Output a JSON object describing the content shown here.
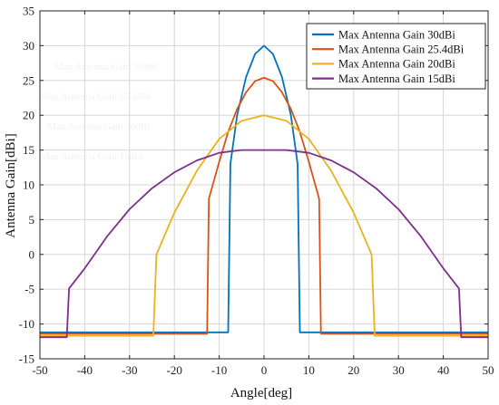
{
  "chart_data": {
    "type": "line",
    "xlabel": "Angle[deg]",
    "ylabel": "Antenna Gain[dBi]",
    "xlim": [
      -50,
      50
    ],
    "ylim": [
      -15,
      35
    ],
    "xticks": [
      -50,
      -40,
      -30,
      -20,
      -10,
      0,
      10,
      20,
      30,
      40,
      50
    ],
    "yticks": [
      -15,
      -10,
      -5,
      0,
      5,
      10,
      15,
      20,
      25,
      30,
      35
    ],
    "grid": true,
    "legend_position": "top-right",
    "series": [
      {
        "name": "Max Antenna Gain 30dBi",
        "color": "#0072BD",
        "points": [
          [
            -50,
            -11.2
          ],
          [
            -8,
            -11.2
          ],
          [
            -7.5,
            13
          ],
          [
            -6,
            20
          ],
          [
            -4,
            25.5
          ],
          [
            -2,
            28.8
          ],
          [
            0,
            30
          ],
          [
            2,
            28.8
          ],
          [
            4,
            25.5
          ],
          [
            6,
            20
          ],
          [
            7.5,
            13
          ],
          [
            8,
            -11.2
          ],
          [
            50,
            -11.2
          ]
        ]
      },
      {
        "name": "Max Antenna Gain 25.4dBi",
        "color": "#D95319",
        "points": [
          [
            -50,
            -11.4
          ],
          [
            -12.7,
            -11.4
          ],
          [
            -12.3,
            8
          ],
          [
            -10,
            13.3
          ],
          [
            -8,
            17.6
          ],
          [
            -6,
            20.9
          ],
          [
            -4,
            23.3
          ],
          [
            -2,
            24.9
          ],
          [
            0,
            25.4
          ],
          [
            2,
            24.9
          ],
          [
            4,
            23.3
          ],
          [
            6,
            20.9
          ],
          [
            8,
            17.6
          ],
          [
            10,
            13.3
          ],
          [
            12.3,
            8
          ],
          [
            12.7,
            -11.4
          ],
          [
            50,
            -11.4
          ]
        ]
      },
      {
        "name": "Max Antenna Gain 20dBi",
        "color": "#EDB120",
        "points": [
          [
            -50,
            -11.7
          ],
          [
            -24.7,
            -11.7
          ],
          [
            -24,
            0
          ],
          [
            -20,
            6
          ],
          [
            -15,
            12
          ],
          [
            -10,
            16.6
          ],
          [
            -5,
            19.2
          ],
          [
            0,
            20
          ],
          [
            5,
            19.2
          ],
          [
            10,
            16.6
          ],
          [
            15,
            12
          ],
          [
            20,
            6
          ],
          [
            24,
            0
          ],
          [
            24.7,
            -11.7
          ],
          [
            50,
            -11.7
          ]
        ]
      },
      {
        "name": "Max Antenna Gain 15dBi",
        "color": "#7E2F8E",
        "points": [
          [
            -50,
            -11.9
          ],
          [
            -44,
            -11.9
          ],
          [
            -43.5,
            -4.9
          ],
          [
            -40,
            -2
          ],
          [
            -35,
            2.6
          ],
          [
            -30,
            6.5
          ],
          [
            -25,
            9.5
          ],
          [
            -20,
            11.8
          ],
          [
            -15,
            13.5
          ],
          [
            -10,
            14.6
          ],
          [
            -5,
            15
          ],
          [
            0,
            15
          ],
          [
            5,
            15
          ],
          [
            10,
            14.6
          ],
          [
            15,
            13.5
          ],
          [
            20,
            11.8
          ],
          [
            25,
            9.5
          ],
          [
            30,
            6.5
          ],
          [
            35,
            2.6
          ],
          [
            40,
            -2
          ],
          [
            43.5,
            -4.9
          ],
          [
            44,
            -11.9
          ],
          [
            50,
            -11.9
          ]
        ]
      }
    ]
  },
  "colors": {
    "axis": "#262626",
    "grid": "#d7d7d7",
    "ghost_text": "#8fc6ea"
  },
  "ghost_labels": [
    "Max Antenna Gain 30dBi",
    "Max Antenna Gain 25.4dBi",
    "Max Antenna Gain 20dBi",
    "Max Antenna Gain 15dBi"
  ]
}
